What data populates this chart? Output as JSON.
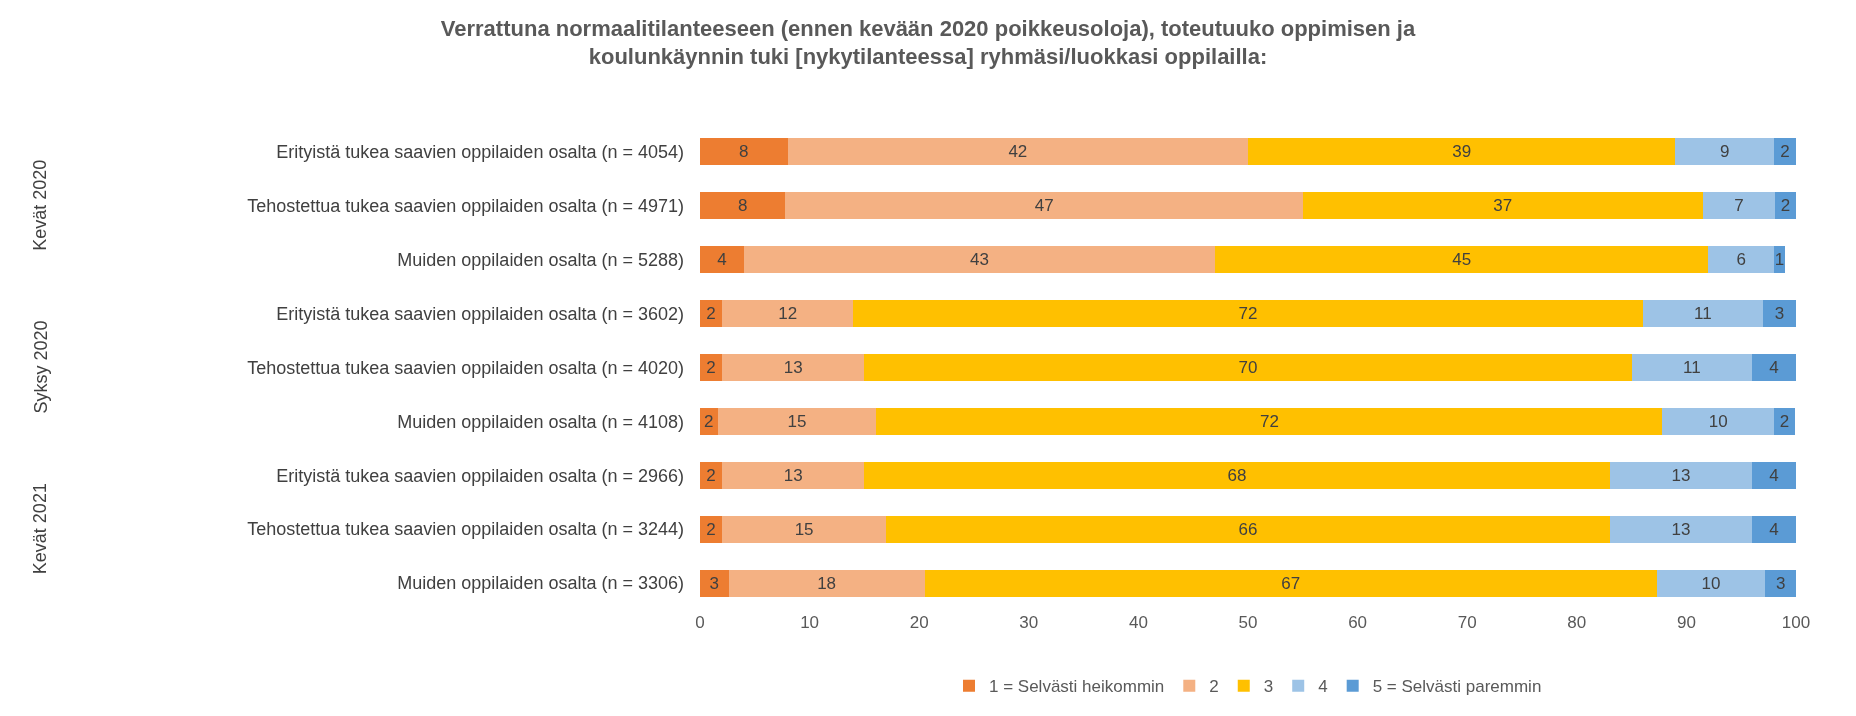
{
  "chart_data": {
    "type": "bar",
    "orientation": "horizontal",
    "stacked": true,
    "title": "Verrattuna normaalitilanteeseen (ennen kevään 2020 poikkeusoloja), toteutuuko oppimisen ja koulunkäynnin tuki [nykytilanteessa] ryhmäsi/luokkasi oppilailla:",
    "categories": [
      "Erityistä tukea saavien oppilaiden osalta (n = 4054)",
      "Tehostettua tukea saavien oppilaiden osalta (n = 4971)",
      "Muiden oppilaiden osalta (n = 5288)",
      "Erityistä tukea saavien oppilaiden osalta (n = 3602)",
      "Tehostettua tukea saavien oppilaiden osalta (n = 4020)",
      "Muiden oppilaiden osalta (n = 4108)",
      "Erityistä tukea saavien oppilaiden osalta (n = 2966)",
      "Tehostettua tukea saavien oppilaiden osalta (n = 3244)",
      "Muiden oppilaiden osalta (n = 3306)"
    ],
    "annotations": [
      "Kevät 2020",
      "Syksy 2020",
      "Kevät 2021"
    ],
    "series": [
      {
        "name": "1 = Selvästi heikommin",
        "color": "#ed7d31",
        "values": [
          8,
          7.8,
          4,
          2,
          2,
          1.6,
          2,
          2,
          2.6
        ],
        "value_labels": [
          "8",
          "8",
          "4",
          "2",
          "2",
          "2",
          "2",
          "2",
          "3"
        ]
      },
      {
        "name": "2",
        "color": "#f4b183",
        "values": [
          42,
          47.2,
          43,
          12,
          13,
          14.5,
          13,
          15,
          17.9
        ],
        "value_labels": [
          "42",
          "47",
          "43",
          "12",
          "13",
          "15",
          "13",
          "15",
          "18"
        ]
      },
      {
        "name": "3",
        "color": "#ffc000",
        "values": [
          39,
          36.5,
          45,
          72,
          70,
          71.7,
          68,
          66,
          66.8
        ],
        "value_labels": [
          "39",
          "37",
          "45",
          "72",
          "70",
          "72",
          "68",
          "66",
          "67"
        ]
      },
      {
        "name": "4",
        "color": "#9dc3e6",
        "values": [
          9,
          6.6,
          6,
          11,
          11,
          10.2,
          13,
          13,
          9.9
        ],
        "value_labels": [
          "9",
          "7",
          "6",
          "11",
          "11",
          "10",
          "13",
          "13",
          "10"
        ]
      },
      {
        "name": "5 = Selvästi paremmin",
        "color": "#5b9bd5",
        "values": [
          2,
          1.9,
          1,
          3,
          4,
          1.9,
          4,
          4,
          2.8
        ],
        "value_labels": [
          "2",
          "2",
          "1",
          "3",
          "4",
          "2",
          "4",
          "4",
          "3"
        ]
      }
    ],
    "xlim": [
      0,
      100
    ],
    "xticks": [
      0,
      10,
      20,
      30,
      40,
      50,
      60,
      70,
      80,
      90,
      100
    ],
    "grid": false,
    "legend": "bottom"
  }
}
